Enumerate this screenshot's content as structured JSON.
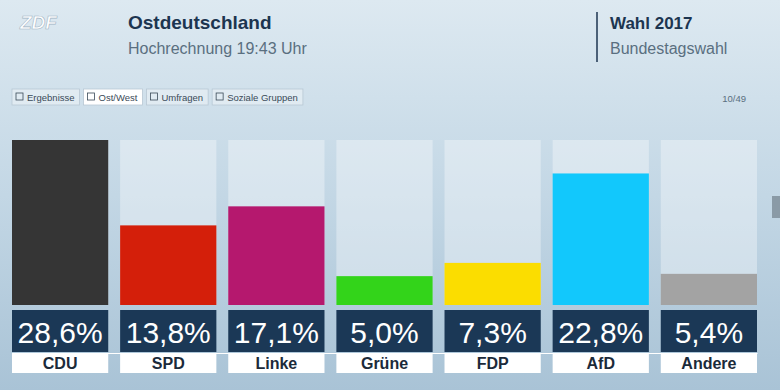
{
  "header": {
    "logo": "ZDF",
    "election": "Wahl 2017",
    "election_type": "Bundestagswahl"
  },
  "tabs": [
    "Ergebnisse",
    "Ost/West",
    "Umfragen",
    "Soziale Gruppen"
  ],
  "page": "10/49",
  "chart_data": {
    "type": "bar",
    "title": "Ostdeutschland",
    "subtitle": "Hochrechnung 19:43 Uhr",
    "categories": [
      "CDU",
      "SPD",
      "Linke",
      "Grüne",
      "FDP",
      "AfD",
      "Andere"
    ],
    "values": [
      28.6,
      13.8,
      17.1,
      5.0,
      7.3,
      22.8,
      5.4
    ],
    "value_labels": [
      "28,6%",
      "13,8%",
      "17,1%",
      "5,0%",
      "7,3%",
      "22,8%",
      "5,4%"
    ],
    "colors": [
      "#353535",
      "#d41f0a",
      "#b5186e",
      "#33d41a",
      "#fbdd00",
      "#12c8fc",
      "#a3a3a3"
    ],
    "ylim": [
      0,
      28.6
    ],
    "data_labels": true,
    "tick_labels": "x"
  }
}
